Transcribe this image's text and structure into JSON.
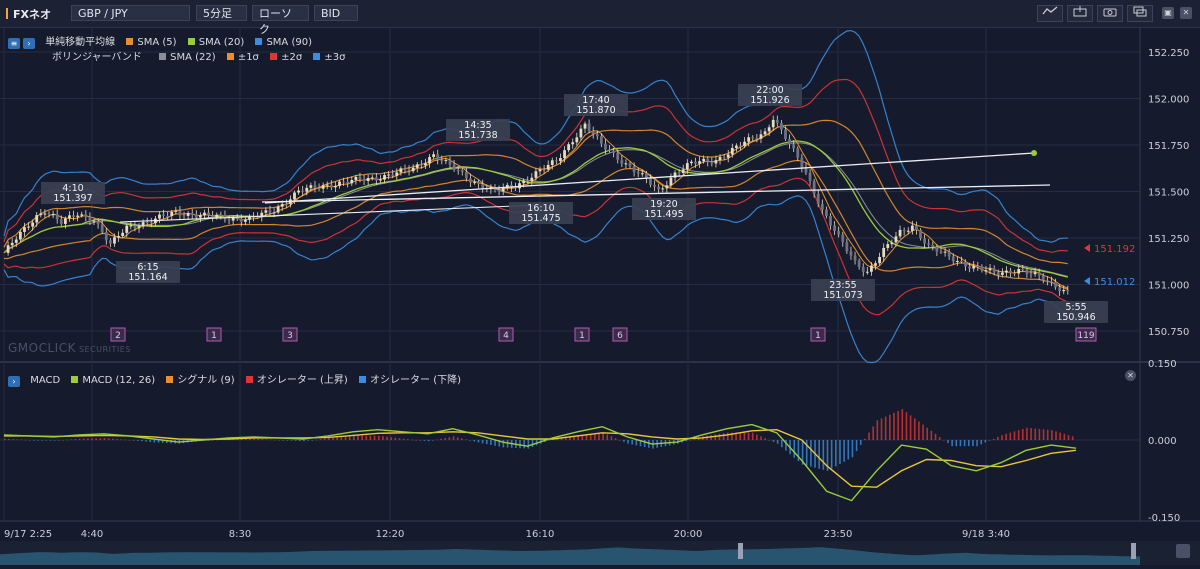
{
  "toolbar": {
    "title": "FXネオ",
    "pair": "GBP / JPY",
    "interval": "5分足",
    "chart_kind": "ローソク",
    "price_type": "BID",
    "icons": [
      "line-tool-icon",
      "export-icon",
      "camera-icon",
      "layout-icon",
      "window-restore-icon",
      "window-close-icon"
    ]
  },
  "legend": {
    "sma_title": "単純移動平均線",
    "sma5": "SMA (5)",
    "sma20": "SMA (20)",
    "sma90": "SMA (90)",
    "bb_title": "ボリンジャーバンド",
    "bb_sma": "SMA (22)",
    "bb1": "±1σ",
    "bb2": "±2σ",
    "bb3": "±3σ",
    "macd_title": "MACD",
    "macd_line": "MACD (12, 26)",
    "signal": "シグナル (9)",
    "osc_up": "オシレーター (上昇)",
    "osc_down": "オシレーター (下降)"
  },
  "watermark": {
    "brand": "GMOCLICK",
    "sub": "SECURITIES"
  },
  "colors": {
    "background": "#151b2c",
    "grid": "#262d42",
    "sma5": "#e8902f",
    "sma20": "#9ccc3a",
    "sma90": "#3a8de0",
    "bb_sma": "#8a8f99",
    "bb1": "#e8902f",
    "bb2": "#e03535",
    "bb3": "#3a8de0",
    "macd": "#9ccc3a",
    "signal": "#e8c53a",
    "osc_up": "#e03535",
    "osc_down": "#3a8de0",
    "candle": "#e8dcc0",
    "annotation_box": "#3a4052",
    "event_box": "#b35bb0"
  },
  "chart_data": [
    {
      "type": "line",
      "name": "price",
      "ylim": [
        150.7,
        152.3
      ],
      "y_ticks": [
        "152.250",
        "152.000",
        "151.750",
        "151.500",
        "151.250",
        "151.000",
        "150.750"
      ],
      "x_ticks": [
        "9/17 2:25",
        "4:40",
        "8:30",
        "12:20",
        "16:10",
        "20:00",
        "23:50",
        "9/18 3:40"
      ],
      "price_line": [
        {
          "t": 0,
          "v": 151.17
        },
        {
          "t": 4,
          "v": 151.27
        },
        {
          "t": 8,
          "v": 151.37
        },
        {
          "t": 10,
          "v": 151.4
        },
        {
          "t": 14,
          "v": 151.33
        },
        {
          "t": 18,
          "v": 151.38
        },
        {
          "t": 22,
          "v": 151.35
        },
        {
          "t": 26,
          "v": 151.21
        },
        {
          "t": 30,
          "v": 151.31
        },
        {
          "t": 36,
          "v": 151.34
        },
        {
          "t": 42,
          "v": 151.39
        },
        {
          "t": 48,
          "v": 151.37
        },
        {
          "t": 54,
          "v": 151.36
        },
        {
          "t": 60,
          "v": 151.35
        },
        {
          "t": 66,
          "v": 151.4
        },
        {
          "t": 72,
          "v": 151.5
        },
        {
          "t": 80,
          "v": 151.54
        },
        {
          "t": 90,
          "v": 151.57
        },
        {
          "t": 100,
          "v": 151.62
        },
        {
          "t": 105,
          "v": 151.7
        },
        {
          "t": 110,
          "v": 151.62
        },
        {
          "t": 115,
          "v": 151.55
        },
        {
          "t": 120,
          "v": 151.5
        },
        {
          "t": 125,
          "v": 151.53
        },
        {
          "t": 130,
          "v": 151.6
        },
        {
          "t": 135,
          "v": 151.66
        },
        {
          "t": 139,
          "v": 151.78
        },
        {
          "t": 142,
          "v": 151.86
        },
        {
          "t": 146,
          "v": 151.75
        },
        {
          "t": 152,
          "v": 151.65
        },
        {
          "t": 156,
          "v": 151.58
        },
        {
          "t": 160,
          "v": 151.5
        },
        {
          "t": 164,
          "v": 151.6
        },
        {
          "t": 168,
          "v": 151.65
        },
        {
          "t": 174,
          "v": 151.67
        },
        {
          "t": 180,
          "v": 151.75
        },
        {
          "t": 186,
          "v": 151.82
        },
        {
          "t": 188,
          "v": 151.9
        },
        {
          "t": 192,
          "v": 151.75
        },
        {
          "t": 196,
          "v": 151.6
        },
        {
          "t": 200,
          "v": 151.4
        },
        {
          "t": 204,
          "v": 151.25
        },
        {
          "t": 208,
          "v": 151.12
        },
        {
          "t": 211,
          "v": 151.07
        },
        {
          "t": 215,
          "v": 151.18
        },
        {
          "t": 219,
          "v": 151.28
        },
        {
          "t": 222,
          "v": 151.32
        },
        {
          "t": 226,
          "v": 151.2
        },
        {
          "t": 230,
          "v": 151.16
        },
        {
          "t": 236,
          "v": 151.1
        },
        {
          "t": 242,
          "v": 151.06
        },
        {
          "t": 248,
          "v": 151.08
        },
        {
          "t": 254,
          "v": 151.03
        },
        {
          "t": 260,
          "v": 150.96
        }
      ],
      "annotations": [
        {
          "time": "4:10",
          "price": "151.397"
        },
        {
          "time": "6:15",
          "price": "151.164"
        },
        {
          "time": "14:35",
          "price": "151.738"
        },
        {
          "time": "16:10",
          "price": "151.475"
        },
        {
          "time": "17:40",
          "price": "151.870"
        },
        {
          "time": "19:20",
          "price": "151.495"
        },
        {
          "time": "22:00",
          "price": "151.926"
        },
        {
          "time": "23:55",
          "price": "151.073"
        },
        {
          "time": "5:55",
          "price": "150.946"
        }
      ],
      "price_tags": [
        {
          "label": "151.192",
          "color": "#e03535"
        },
        {
          "label": "151.012",
          "color": "#3a8de0"
        }
      ],
      "event_markers": [
        "2",
        "1",
        "3",
        "4",
        "1",
        "6",
        "1",
        "119"
      ]
    },
    {
      "type": "line",
      "name": "macd",
      "ylim": [
        -0.15,
        0.15
      ],
      "y_ticks": [
        "0.150",
        "0.000",
        "-0.150"
      ],
      "series": [
        {
          "name": "MACD (12, 26)",
          "values": [
            0.01,
            0.008,
            0.006,
            0.01,
            0.012,
            0.008,
            0.002,
            -0.004,
            0.0,
            0.004,
            0.006,
            0.004,
            0.002,
            0.008,
            0.016,
            0.02,
            0.016,
            0.012,
            0.022,
            0.01,
            -0.004,
            -0.012,
            0.004,
            0.016,
            0.026,
            0.006,
            -0.008,
            -0.004,
            0.01,
            0.022,
            0.03,
            0.014,
            -0.04,
            -0.1,
            -0.118,
            -0.06,
            -0.01,
            -0.018,
            -0.05,
            -0.06,
            -0.044,
            -0.02,
            -0.01,
            -0.016
          ]
        },
        {
          "name": "シグナル (9)",
          "values": [
            0.008,
            0.008,
            0.007,
            0.008,
            0.009,
            0.008,
            0.006,
            0.002,
            0.001,
            0.002,
            0.004,
            0.004,
            0.004,
            0.005,
            0.009,
            0.013,
            0.014,
            0.014,
            0.016,
            0.014,
            0.008,
            0.002,
            0.002,
            0.008,
            0.014,
            0.012,
            0.006,
            0.002,
            0.004,
            0.01,
            0.018,
            0.02,
            0.0,
            -0.05,
            -0.09,
            -0.092,
            -0.06,
            -0.038,
            -0.04,
            -0.05,
            -0.052,
            -0.04,
            -0.026,
            -0.02
          ]
        }
      ]
    }
  ]
}
